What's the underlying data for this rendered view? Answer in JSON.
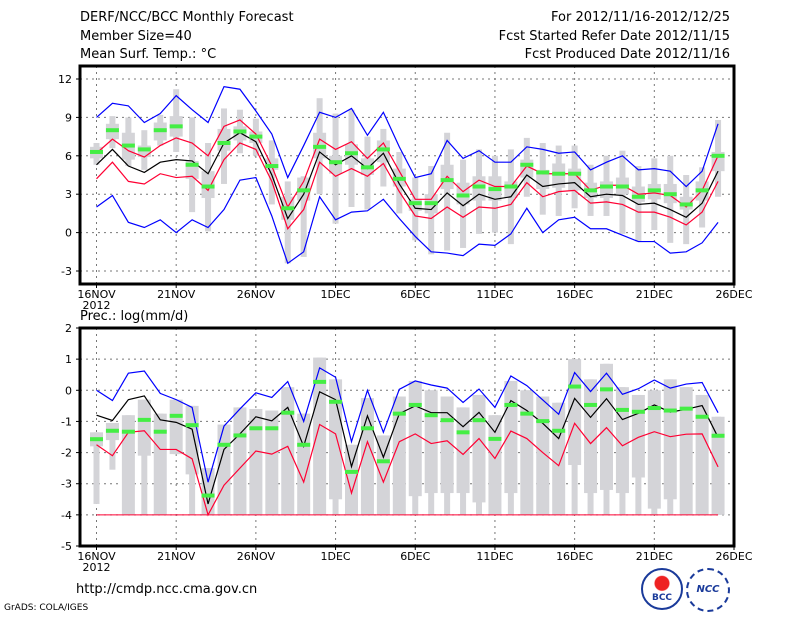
{
  "header": {
    "title": "DERF/NCC/BCC Monthly Forecast",
    "member": "Member Size=40",
    "variable": "Mean Surf. Temp.: °C",
    "period": "For 2012/11/16-2012/12/25",
    "started": "Fcst Started Refer Date 2012/11/15",
    "produced": "Fcst Produced Date 2012/11/16"
  },
  "footer": {
    "url": "http://cmdp.ncc.cma.gov.cn",
    "credit": "GrADS: COLA/IGES",
    "logo1": "BCC",
    "logo2": "NCC"
  },
  "colors": {
    "max_min": "#0000ff",
    "bounds": "#ff0033",
    "mean": "#000000",
    "obs": "#44ee44",
    "bars": "#d4d4d8"
  },
  "chart_data": [
    {
      "type": "line",
      "title": "Mean Surf. Temp.: °C",
      "ylim": [
        -3,
        12
      ],
      "yticks": [
        -3,
        0,
        3,
        6,
        9,
        12
      ],
      "xticks": [
        "16NOV",
        "21NOV",
        "26NOV",
        "1DEC",
        "6DEC",
        "11DEC",
        "16DEC",
        "21DEC",
        "26DEC"
      ],
      "xyear": "2012",
      "grid": true,
      "days": 40,
      "max": [
        9.0,
        10.1,
        9.9,
        8.6,
        9.3,
        10.7,
        9.6,
        8.6,
        11.4,
        11.2,
        9.5,
        7.7,
        4.3,
        6.8,
        9.4,
        9.0,
        9.7,
        7.6,
        9.4,
        6.7,
        4.3,
        4.6,
        7.2,
        5.8,
        6.4,
        5.5,
        5.5,
        6.7,
        6.5,
        6.2,
        6.3,
        4.9,
        5.5,
        6.0,
        4.9,
        5.0,
        4.8,
        3.6,
        4.8,
        8.5
      ],
      "upper": [
        6.2,
        7.3,
        6.4,
        5.9,
        6.8,
        7.4,
        7.0,
        6.0,
        8.3,
        8.8,
        7.7,
        5.2,
        2.0,
        4.0,
        7.3,
        6.5,
        7.1,
        5.8,
        7.0,
        4.8,
        2.6,
        2.6,
        4.4,
        3.2,
        4.1,
        3.6,
        3.6,
        5.2,
        4.6,
        4.6,
        4.6,
        3.3,
        3.7,
        3.7,
        3.0,
        3.1,
        2.9,
        2.0,
        3.3,
        6.0
      ],
      "mean": [
        5.3,
        6.5,
        5.2,
        4.7,
        5.5,
        5.7,
        5.6,
        4.6,
        7.0,
        7.8,
        7.1,
        4.5,
        1.1,
        3.0,
        6.3,
        5.3,
        6.0,
        5.0,
        6.2,
        3.8,
        1.9,
        1.8,
        3.1,
        2.1,
        3.0,
        2.6,
        2.8,
        4.5,
        3.6,
        3.8,
        3.9,
        2.8,
        3.0,
        2.9,
        2.2,
        2.3,
        1.8,
        1.2,
        2.3,
        4.8
      ],
      "lower": [
        4.2,
        5.5,
        4.0,
        3.8,
        4.6,
        4.3,
        4.4,
        3.3,
        5.7,
        7.0,
        6.5,
        4.0,
        0.3,
        1.8,
        5.5,
        4.4,
        5.0,
        4.4,
        5.4,
        3.2,
        1.3,
        1.1,
        2.0,
        1.2,
        2.0,
        1.9,
        2.2,
        3.9,
        2.8,
        3.2,
        3.3,
        2.3,
        2.4,
        2.2,
        1.6,
        1.6,
        1.2,
        0.6,
        1.6,
        4.0
      ],
      "min": [
        2.0,
        2.9,
        0.8,
        0.4,
        1.0,
        0.0,
        1.0,
        0.4,
        1.8,
        4.1,
        4.3,
        1.3,
        -2.4,
        -1.5,
        2.8,
        1.0,
        1.6,
        1.7,
        2.6,
        1.1,
        -0.3,
        -1.5,
        -1.6,
        -1.8,
        -0.9,
        -1.0,
        -0.1,
        1.9,
        0.0,
        1.0,
        1.2,
        0.3,
        0.3,
        -0.2,
        -0.7,
        -0.7,
        -1.6,
        -1.5,
        -0.8,
        0.8
      ],
      "obs": [
        6.3,
        8.0,
        6.8,
        6.5,
        8.0,
        8.3,
        5.3,
        3.6,
        7.0,
        7.9,
        7.5,
        5.2,
        1.9,
        3.3,
        6.7,
        5.5,
        6.2,
        5.1,
        6.5,
        4.2,
        2.3,
        2.3,
        4.1,
        2.9,
        3.6,
        3.4,
        3.6,
        5.3,
        4.7,
        4.6,
        4.6,
        3.3,
        3.6,
        3.6,
        2.8,
        3.3,
        3.0,
        2.2,
        3.3,
        6.0
      ],
      "whisker_low": [
        5.3,
        6.6,
        5.2,
        4.9,
        6.8,
        6.3,
        1.6,
        0.1,
        3.8,
        6.2,
        6.0,
        2.2,
        -2.4,
        -1.9,
        3.0,
        0.7,
        2.0,
        1.8,
        3.6,
        1.5,
        -0.6,
        -1.7,
        -1.4,
        -1.2,
        -0.1,
        0.0,
        -0.9,
        2.8,
        1.4,
        1.3,
        1.9,
        1.3,
        1.3,
        -0.1,
        -0.7,
        0.2,
        -0.8,
        -0.9,
        0.4,
        2.8
      ],
      "whisker_high": [
        7.0,
        9.1,
        9.0,
        8.0,
        9.2,
        11.2,
        9.0,
        7.0,
        9.7,
        9.6,
        8.9,
        7.2,
        4.0,
        4.4,
        10.5,
        9.3,
        9.6,
        7.5,
        8.1,
        6.3,
        4.3,
        5.2,
        7.8,
        5.7,
        6.5,
        6.0,
        6.5,
        7.4,
        7.0,
        6.8,
        6.8,
        5.3,
        6.0,
        6.4,
        5.2,
        5.8,
        6.0,
        4.5,
        5.1,
        8.8
      ],
      "box_low": [
        5.8,
        7.3,
        5.7,
        5.9,
        7.2,
        7.5,
        4.2,
        2.7,
        6.4,
        7.2,
        7.0,
        4.9,
        1.0,
        2.5,
        5.8,
        4.6,
        5.3,
        4.5,
        5.5,
        3.6,
        1.7,
        1.5,
        3.4,
        2.2,
        2.5,
        2.5,
        2.7,
        4.3,
        3.4,
        3.5,
        3.3,
        2.7,
        2.7,
        3.0,
        2.4,
        2.6,
        2.3,
        1.8,
        2.5,
        4.8
      ],
      "box_high": [
        6.7,
        8.5,
        7.8,
        6.8,
        8.6,
        9.1,
        5.6,
        4.8,
        8.1,
        8.3,
        7.9,
        5.8,
        2.8,
        4.3,
        7.8,
        6.0,
        6.9,
        5.8,
        7.2,
        5.0,
        2.6,
        3.0,
        5.3,
        3.9,
        4.4,
        4.4,
        4.0,
        5.7,
        4.9,
        5.4,
        5.0,
        3.9,
        4.0,
        4.3,
        3.6,
        3.8,
        3.8,
        2.8,
        4.0,
        6.3
      ]
    },
    {
      "type": "line",
      "title": "Prec.: log(mm/d)",
      "ylim": [
        -5,
        2
      ],
      "yticks": [
        -5,
        -4,
        -3,
        -2,
        -1,
        0,
        1,
        2
      ],
      "xticks": [
        "16NOV",
        "21NOV",
        "26NOV",
        "1DEC",
        "6DEC",
        "11DEC",
        "16DEC",
        "21DEC",
        "26DEC"
      ],
      "xyear": "2012",
      "grid": true,
      "floor": -4,
      "days": 40,
      "max": [
        0.0,
        -0.33,
        0.55,
        0.62,
        -0.1,
        -0.3,
        -0.55,
        -2.95,
        -1.15,
        -0.6,
        -0.08,
        -0.23,
        0.28,
        -1.0,
        0.72,
        0.42,
        -1.65,
        0.0,
        -1.35,
        0.03,
        0.3,
        0.17,
        0.07,
        -0.39,
        0.04,
        -0.55,
        0.46,
        0.15,
        -0.31,
        -0.77,
        0.57,
        -0.04,
        0.55,
        -0.13,
        0.05,
        0.33,
        0.07,
        0.2,
        0.25,
        -0.72
      ],
      "mean": [
        -0.8,
        -0.97,
        -0.3,
        -0.18,
        -0.95,
        -1.03,
        -1.25,
        -3.65,
        -1.9,
        -1.4,
        -0.85,
        -0.98,
        -0.55,
        -1.8,
        -0.05,
        -0.3,
        -2.45,
        -0.82,
        -2.15,
        -0.75,
        -0.5,
        -0.72,
        -0.72,
        -1.17,
        -0.71,
        -1.35,
        -0.33,
        -0.65,
        -1.06,
        -1.55,
        -0.26,
        -0.87,
        -0.27,
        -0.94,
        -0.74,
        -0.47,
        -0.7,
        -0.61,
        -0.49,
        -1.51
      ],
      "lower": [
        -1.75,
        -2.1,
        -1.35,
        -1.3,
        -1.9,
        -1.9,
        -2.2,
        -4.0,
        -3.05,
        -2.5,
        -1.95,
        -2.05,
        -1.8,
        -2.95,
        -1.1,
        -1.4,
        -3.3,
        -1.65,
        -2.95,
        -1.65,
        -1.4,
        -1.71,
        -1.62,
        -2.06,
        -1.55,
        -2.19,
        -1.31,
        -1.55,
        -2.0,
        -2.42,
        -1.06,
        -1.71,
        -1.2,
        -1.78,
        -1.51,
        -1.33,
        -1.49,
        -1.41,
        -1.4,
        -2.46
      ],
      "obs": [
        -1.57,
        -1.3,
        -1.33,
        -0.95,
        -1.33,
        -0.82,
        -1.12,
        -3.38,
        -1.75,
        -1.45,
        -1.22,
        -1.22,
        -0.72,
        -1.75,
        0.27,
        -0.37,
        -2.62,
        -1.22,
        -2.28,
        -0.75,
        -0.47,
        -0.8,
        -0.96,
        -1.35,
        -0.96,
        -1.56,
        -0.47,
        -0.75,
        -0.99,
        -1.3,
        0.12,
        -0.47,
        0.03,
        -0.63,
        -0.69,
        -0.57,
        -0.65,
        -0.59,
        -0.85,
        -1.46
      ],
      "whisker_low": [
        -3.65,
        -2.55,
        -4,
        -4,
        -4,
        -2.05,
        -4,
        -4,
        -4,
        -4,
        -4,
        -4,
        -4,
        -4,
        -4,
        -4,
        -4,
        -4,
        -4,
        -4,
        -4,
        -4,
        -4,
        -4,
        -4,
        -4,
        -4,
        -4,
        -4,
        -4,
        -4,
        -4,
        -4,
        -4,
        -4,
        -4,
        -4,
        -4,
        -4,
        -4
      ],
      "whisker_high": [
        -1.35,
        -1.05,
        -0.8,
        -0.3,
        -0.75,
        -0.3,
        -0.5,
        -2.5,
        -1.1,
        -0.55,
        -0.6,
        -0.65,
        0.1,
        -0.75,
        1.05,
        0.35,
        -1.75,
        -0.25,
        -1.45,
        -0.2,
        0.3,
        0.0,
        -0.2,
        -0.55,
        -0.15,
        -0.8,
        0.3,
        0.0,
        -0.2,
        -0.4,
        1.0,
        0.35,
        0.85,
        0.1,
        -0.15,
        0.0,
        0.35,
        0.1,
        -0.15,
        -0.85
      ],
      "box_low": [
        -1.8,
        -1.6,
        -4,
        -2.1,
        -4,
        -2.05,
        -2.7,
        -4,
        -4,
        -4,
        -4,
        -4,
        -4,
        -4,
        -4,
        -3.5,
        -4,
        -4,
        -4,
        -4,
        -3.4,
        -3.3,
        -3.3,
        -3.3,
        -3.6,
        -4,
        -3.3,
        -4,
        -4,
        -4,
        -2.4,
        -3.3,
        -3.2,
        -3.3,
        -2.8,
        -3.8,
        -3.5,
        -4,
        -4,
        -4
      ],
      "box_high": [
        -1.35,
        -1.05,
        -0.8,
        -0.3,
        -0.75,
        -0.3,
        -0.5,
        -2.5,
        -1.1,
        -0.55,
        -0.6,
        -0.65,
        0.1,
        -0.75,
        1.05,
        0.35,
        -1.75,
        -0.25,
        -1.45,
        -0.2,
        0.3,
        0.0,
        -0.2,
        -0.55,
        -0.15,
        -0.8,
        0.3,
        0.0,
        -0.2,
        -0.4,
        1.0,
        0.35,
        0.85,
        0.1,
        -0.15,
        0.0,
        0.35,
        0.1,
        -0.15,
        -0.85
      ]
    }
  ]
}
